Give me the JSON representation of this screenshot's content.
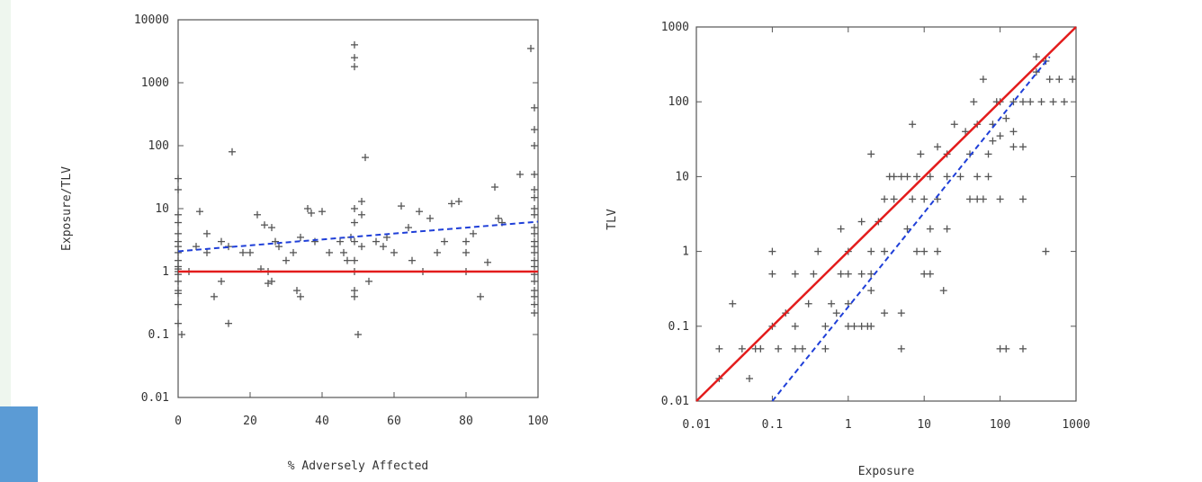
{
  "colors": {
    "ref_line": "#e31c1c",
    "trend_line": "#1f3fd8",
    "marker": "#555555",
    "accent": "#5b9bd5"
  },
  "chart_data": [
    {
      "type": "scatter",
      "xlabel": "% Adversely Affected",
      "ylabel": "Exposure/TLV",
      "xlim": [
        0,
        100
      ],
      "ylim": [
        0.01,
        10000
      ],
      "yscale": "log",
      "xticks": [
        "0",
        "20",
        "40",
        "60",
        "80",
        "100"
      ],
      "yticks": [
        "0.01",
        "0.1",
        "1",
        "10",
        "100",
        "1000",
        "10000"
      ],
      "points": [
        [
          0,
          30
        ],
        [
          0,
          20
        ],
        [
          0,
          8
        ],
        [
          0,
          6
        ],
        [
          0,
          4
        ],
        [
          0,
          3
        ],
        [
          0,
          2.5
        ],
        [
          0,
          2
        ],
        [
          0,
          1.5
        ],
        [
          0,
          1.2
        ],
        [
          0,
          1.1
        ],
        [
          0,
          1
        ],
        [
          0,
          0.9
        ],
        [
          0,
          0.7
        ],
        [
          0,
          0.5
        ],
        [
          0,
          0.45
        ],
        [
          0,
          0.3
        ],
        [
          0,
          0.15
        ],
        [
          1,
          0.1
        ],
        [
          3,
          1
        ],
        [
          5,
          2.5
        ],
        [
          6,
          9
        ],
        [
          8,
          4
        ],
        [
          8,
          2
        ],
        [
          10,
          0.4
        ],
        [
          12,
          0.7
        ],
        [
          12,
          3
        ],
        [
          14,
          2.5
        ],
        [
          14,
          0.15
        ],
        [
          15,
          80
        ],
        [
          18,
          2
        ],
        [
          20,
          2
        ],
        [
          22,
          8
        ],
        [
          23,
          1.1
        ],
        [
          24,
          5.5
        ],
        [
          25,
          1
        ],
        [
          25,
          0.65
        ],
        [
          26,
          0.7
        ],
        [
          26,
          5
        ],
        [
          27,
          3
        ],
        [
          28,
          2.5
        ],
        [
          30,
          1.5
        ],
        [
          32,
          2
        ],
        [
          33,
          0.5
        ],
        [
          34,
          3.5
        ],
        [
          34,
          0.4
        ],
        [
          36,
          10
        ],
        [
          37,
          8.5
        ],
        [
          38,
          3
        ],
        [
          40,
          9
        ],
        [
          42,
          2
        ],
        [
          45,
          3
        ],
        [
          46,
          2
        ],
        [
          47,
          1.5
        ],
        [
          48,
          3.5
        ],
        [
          49,
          4000
        ],
        [
          49,
          2500
        ],
        [
          49,
          1800
        ],
        [
          49,
          10
        ],
        [
          49,
          6
        ],
        [
          49,
          3
        ],
        [
          49,
          1.5
        ],
        [
          49,
          1
        ],
        [
          49,
          0.5
        ],
        [
          49,
          0.4
        ],
        [
          50,
          0.1
        ],
        [
          51,
          13
        ],
        [
          51,
          8
        ],
        [
          51,
          2.5
        ],
        [
          52,
          65
        ],
        [
          53,
          0.7
        ],
        [
          55,
          3
        ],
        [
          57,
          2.5
        ],
        [
          58,
          3.5
        ],
        [
          60,
          2
        ],
        [
          62,
          11
        ],
        [
          64,
          5
        ],
        [
          65,
          1.5
        ],
        [
          67,
          9
        ],
        [
          68,
          1
        ],
        [
          70,
          7
        ],
        [
          72,
          2
        ],
        [
          74,
          3
        ],
        [
          76,
          12
        ],
        [
          78,
          13
        ],
        [
          80,
          3
        ],
        [
          80,
          2
        ],
        [
          80,
          1
        ],
        [
          82,
          4
        ],
        [
          84,
          0.4
        ],
        [
          86,
          1.4
        ],
        [
          88,
          22
        ],
        [
          89,
          7
        ],
        [
          90,
          6
        ],
        [
          95,
          35
        ],
        [
          98,
          3500
        ],
        [
          99,
          400
        ],
        [
          99,
          180
        ],
        [
          99,
          100
        ],
        [
          99,
          35
        ],
        [
          99,
          20
        ],
        [
          99,
          15
        ],
        [
          99,
          10
        ],
        [
          99,
          8
        ],
        [
          99,
          5
        ],
        [
          99,
          4
        ],
        [
          99,
          3
        ],
        [
          99,
          2.5
        ],
        [
          99,
          2
        ],
        [
          99,
          1.5
        ],
        [
          99,
          1.2
        ],
        [
          99,
          0.9
        ],
        [
          99,
          0.7
        ],
        [
          99,
          0.5
        ],
        [
          99,
          0.4
        ],
        [
          99,
          0.3
        ],
        [
          99,
          0.22
        ]
      ],
      "reference_line": {
        "y": 1
      },
      "trend_line": {
        "x": [
          0,
          100
        ],
        "y": [
          2.1,
          6.2
        ]
      }
    },
    {
      "type": "scatter",
      "xlabel": "Exposure",
      "ylabel": "TLV",
      "xlim": [
        0.01,
        1000
      ],
      "ylim": [
        0.01,
        1000
      ],
      "xscale": "log",
      "yscale": "log",
      "xticks": [
        "0.01",
        "0.1",
        "1",
        "10",
        "100",
        "1000"
      ],
      "yticks": [
        "0.01",
        "0.1",
        "1",
        "10",
        "100",
        "1000"
      ],
      "points": [
        [
          0.02,
          0.05
        ],
        [
          0.02,
          0.02
        ],
        [
          0.03,
          0.2
        ],
        [
          0.04,
          0.05
        ],
        [
          0.05,
          0.02
        ],
        [
          0.06,
          0.05
        ],
        [
          0.07,
          0.05
        ],
        [
          0.1,
          1
        ],
        [
          0.1,
          0.5
        ],
        [
          0.1,
          0.1
        ],
        [
          0.12,
          0.05
        ],
        [
          0.15,
          0.15
        ],
        [
          0.2,
          0.5
        ],
        [
          0.2,
          0.1
        ],
        [
          0.2,
          0.05
        ],
        [
          0.25,
          0.05
        ],
        [
          0.3,
          0.2
        ],
        [
          0.35,
          0.5
        ],
        [
          0.4,
          1
        ],
        [
          0.5,
          0.05
        ],
        [
          0.5,
          0.1
        ],
        [
          0.6,
          0.2
        ],
        [
          0.7,
          0.15
        ],
        [
          0.8,
          2
        ],
        [
          0.8,
          0.5
        ],
        [
          1,
          0.1
        ],
        [
          1,
          0.2
        ],
        [
          1,
          0.5
        ],
        [
          1,
          1
        ],
        [
          1.2,
          0.1
        ],
        [
          1.5,
          0.1
        ],
        [
          1.5,
          0.5
        ],
        [
          1.5,
          2.5
        ],
        [
          1.8,
          0.1
        ],
        [
          2,
          20
        ],
        [
          2,
          1
        ],
        [
          2,
          0.5
        ],
        [
          2,
          0.3
        ],
        [
          2,
          0.1
        ],
        [
          2.5,
          2.5
        ],
        [
          3,
          5
        ],
        [
          3,
          1
        ],
        [
          3,
          0.15
        ],
        [
          3.5,
          10
        ],
        [
          4,
          10
        ],
        [
          4,
          5
        ],
        [
          5,
          0.05
        ],
        [
          5,
          0.15
        ],
        [
          5,
          10
        ],
        [
          6,
          2
        ],
        [
          6,
          10
        ],
        [
          7,
          50
        ],
        [
          7,
          5
        ],
        [
          8,
          1
        ],
        [
          8,
          10
        ],
        [
          9,
          20
        ],
        [
          10,
          5
        ],
        [
          10,
          0.5
        ],
        [
          10,
          1
        ],
        [
          12,
          2
        ],
        [
          12,
          0.5
        ],
        [
          12,
          10
        ],
        [
          15,
          25
        ],
        [
          15,
          5
        ],
        [
          15,
          1
        ],
        [
          18,
          0.3
        ],
        [
          20,
          20
        ],
        [
          20,
          2
        ],
        [
          20,
          10
        ],
        [
          25,
          50
        ],
        [
          30,
          10
        ],
        [
          35,
          40
        ],
        [
          40,
          5
        ],
        [
          40,
          20
        ],
        [
          45,
          100
        ],
        [
          50,
          10
        ],
        [
          50,
          5
        ],
        [
          50,
          50
        ],
        [
          60,
          200
        ],
        [
          60,
          5
        ],
        [
          70,
          10
        ],
        [
          70,
          20
        ],
        [
          80,
          50
        ],
        [
          80,
          30
        ],
        [
          90,
          100
        ],
        [
          100,
          0.05
        ],
        [
          100,
          5
        ],
        [
          100,
          35
        ],
        [
          100,
          100
        ],
        [
          120,
          60
        ],
        [
          120,
          0.05
        ],
        [
          150,
          40
        ],
        [
          150,
          100
        ],
        [
          150,
          25
        ],
        [
          200,
          25
        ],
        [
          200,
          0.05
        ],
        [
          200,
          5
        ],
        [
          200,
          100
        ],
        [
          250,
          100
        ],
        [
          300,
          250
        ],
        [
          300,
          400
        ],
        [
          350,
          100
        ],
        [
          400,
          350
        ],
        [
          400,
          1
        ],
        [
          450,
          200
        ],
        [
          500,
          100
        ],
        [
          600,
          200
        ],
        [
          700,
          100
        ],
        [
          900,
          200
        ]
      ],
      "reference_line": {
        "x": [
          0.01,
          1000
        ],
        "y": [
          0.01,
          1000
        ]
      },
      "trend_line": {
        "x": [
          0.1,
          450
        ],
        "y": [
          0.01,
          400
        ]
      }
    }
  ]
}
